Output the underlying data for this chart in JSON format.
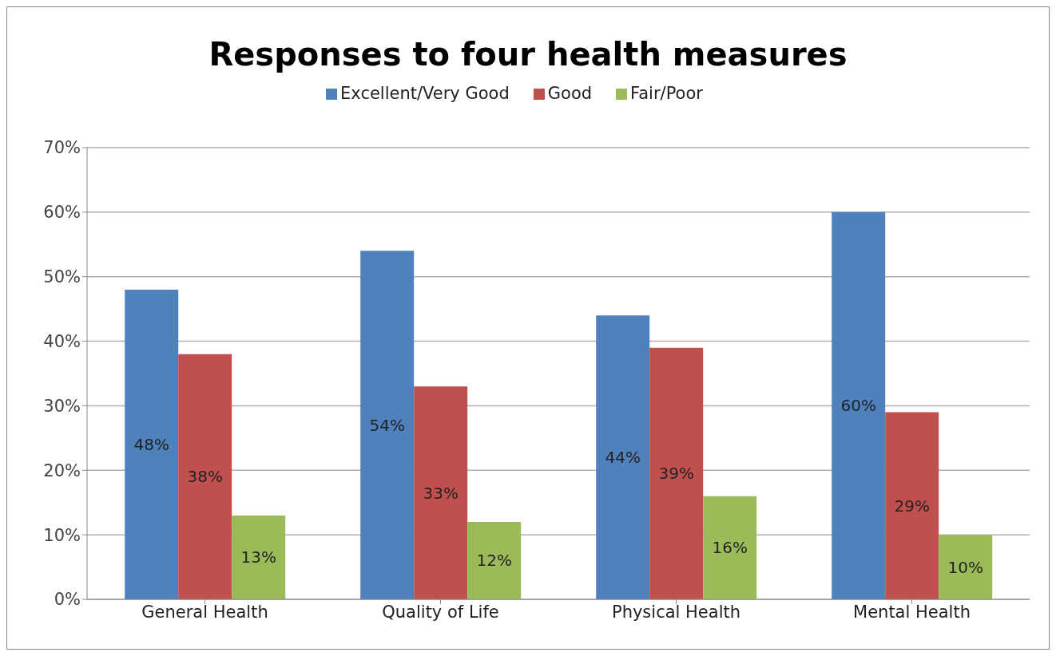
{
  "chart_data": {
    "type": "bar",
    "title": "Responses to four health measures",
    "categories": [
      "General Health",
      "Quality of Life",
      "Physical Health",
      "Mental Health"
    ],
    "series": [
      {
        "name": "Excellent/Very Good",
        "color": "#4f81bd",
        "values": [
          48,
          54,
          44,
          60
        ],
        "value_labels": [
          "48%",
          "54%",
          "44%",
          "60%"
        ]
      },
      {
        "name": "Good",
        "color": "#c0504d",
        "values": [
          38,
          33,
          39,
          29
        ],
        "value_labels": [
          "38%",
          "33%",
          "39%",
          "29%"
        ]
      },
      {
        "name": "Fair/Poor",
        "color": "#9bbb59",
        "values": [
          13,
          12,
          16,
          10
        ],
        "value_labels": [
          "13%",
          "12%",
          "16%",
          "10%"
        ]
      }
    ],
    "ylim": [
      0,
      70
    ],
    "yticks": [
      {
        "value": 0,
        "label": "0%"
      },
      {
        "value": 10,
        "label": "10%"
      },
      {
        "value": 20,
        "label": "20%"
      },
      {
        "value": 30,
        "label": "30%"
      },
      {
        "value": 40,
        "label": "40%"
      },
      {
        "value": 50,
        "label": "50%"
      },
      {
        "value": 60,
        "label": "60%"
      },
      {
        "value": 70,
        "label": "70%"
      }
    ],
    "grid": "y",
    "legend": "top"
  }
}
